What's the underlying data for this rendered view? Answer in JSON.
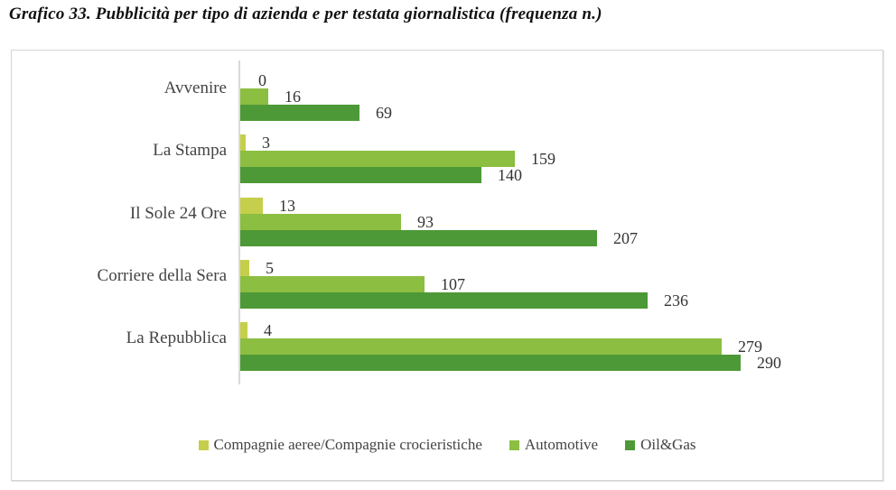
{
  "page_title": "Grafico 33. Pubblicità per tipo di azienda e per testata giornalistica (frequenza n.)",
  "colors": {
    "series_compagnie": "#c5cf4b",
    "series_automotive": "#8cbe41",
    "series_oilgas": "#4e9937",
    "axis_line": "#d9d9d9",
    "frame_border": "#d4d4d4",
    "category_text": "#444444",
    "value_text": "#333333"
  },
  "chart_data": {
    "type": "bar",
    "orientation": "horizontal",
    "title": "Grafico 33. Pubblicità per tipo di azienda e per testata giornalistica (frequenza n.)",
    "categories": [
      "Avvenire",
      "La Stampa",
      "Il Sole 24 Ore",
      "Corriere della Sera",
      "La Repubblica"
    ],
    "series": [
      {
        "name": "Compagnie aeree/Compagnie crocieristiche",
        "color": "#c5cf4b",
        "values": [
          0,
          3,
          13,
          5,
          4
        ]
      },
      {
        "name": "Automotive",
        "color": "#8cbe41",
        "values": [
          16,
          159,
          93,
          107,
          279
        ]
      },
      {
        "name": "Oil&Gas",
        "color": "#4e9937",
        "values": [
          69,
          140,
          207,
          236,
          290
        ]
      }
    ],
    "value_axis_max": 300,
    "data_labels": "outside-end",
    "gridlines": false,
    "legend_position": "bottom",
    "xlabel": "",
    "ylabel": ""
  }
}
